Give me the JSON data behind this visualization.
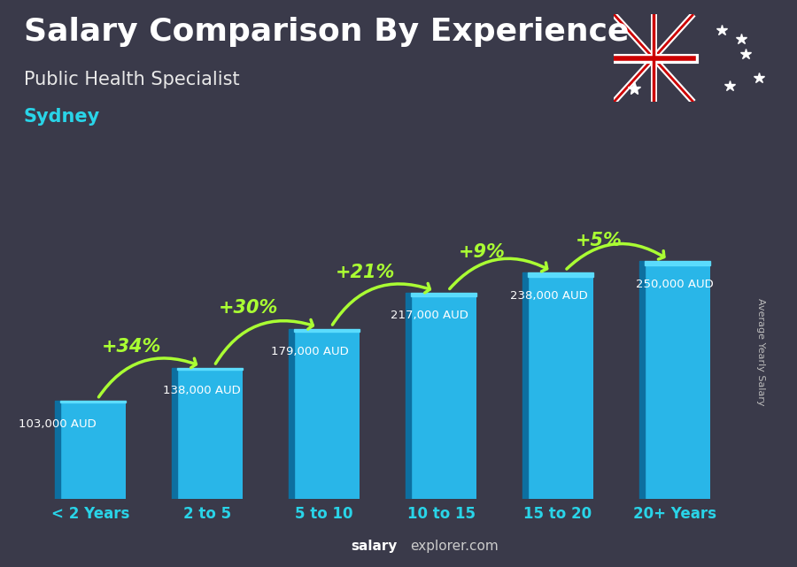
{
  "title": "Salary Comparison By Experience",
  "subtitle": "Public Health Specialist",
  "city": "Sydney",
  "categories": [
    "< 2 Years",
    "2 to 5",
    "5 to 10",
    "10 to 15",
    "15 to 20",
    "20+ Years"
  ],
  "values": [
    103000,
    138000,
    179000,
    217000,
    238000,
    250000
  ],
  "labels": [
    "103,000 AUD",
    "138,000 AUD",
    "179,000 AUD",
    "217,000 AUD",
    "238,000 AUD",
    "250,000 AUD"
  ],
  "pct_changes": [
    "+34%",
    "+30%",
    "+21%",
    "+9%",
    "+5%"
  ],
  "bar_color": "#29b6e8",
  "bar_edge_color": "#1a8fc4",
  "bar_dark_color": "#0d6fa0",
  "background_color": "#3a3a4a",
  "title_color": "#ffffff",
  "subtitle_color": "#e8e8e8",
  "city_color": "#29d4e8",
  "label_color": "#ffffff",
  "pct_color": "#aaff33",
  "xlabel_color": "#29d4e8",
  "footer_bold_color": "#ffffff",
  "footer_normal_color": "#cccccc",
  "ylabel_text": "Average Yearly Salary",
  "footer_bold": "salary",
  "footer_normal": "explorer.com",
  "ylim_max": 310000,
  "label_fontsize": 9.5,
  "pct_fontsize": 15,
  "title_fontsize": 26,
  "subtitle_fontsize": 15,
  "city_fontsize": 15,
  "xtick_fontsize": 12
}
